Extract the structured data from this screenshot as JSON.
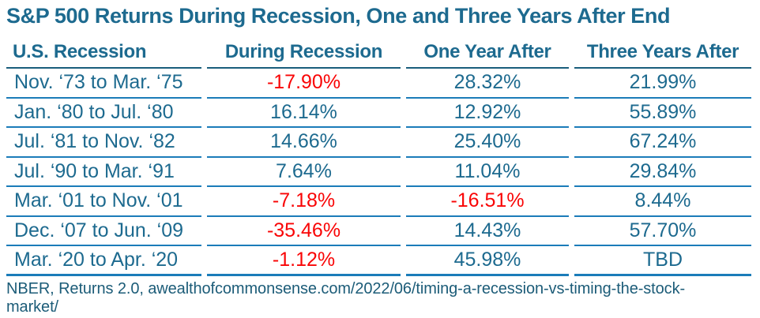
{
  "colors": {
    "teal_text": "#1D6A8F",
    "negative_red": "#F90506",
    "row_separator_blue": "#1B7CB9",
    "header_underline": "#1A5E7C",
    "footer_text": "#1C5C78",
    "background": "#FFFFFF"
  },
  "chart_data": {
    "type": "table",
    "title": "S&P 500 Returns During Recession, One and Three Years After End",
    "columns": [
      "U.S. Recession",
      "During Recession",
      "One Year After",
      "Three Years After"
    ],
    "rows": [
      {
        "period": "Nov. ‘73 to Mar. ‘75",
        "during": "-17.90%",
        "one_year_after": "28.32%",
        "three_years_after": "21.99%"
      },
      {
        "period": "Jan. ‘80 to Jul. ‘80",
        "during": "16.14%",
        "one_year_after": "12.92%",
        "three_years_after": "55.89%"
      },
      {
        "period": "Jul. ‘81 to Nov. ‘82",
        "during": "14.66%",
        "one_year_after": "25.40%",
        "three_years_after": "67.24%"
      },
      {
        "period": "Jul. ‘90 to Mar. ‘91",
        "during": "7.64%",
        "one_year_after": "11.04%",
        "three_years_after": "29.84%"
      },
      {
        "period": "Mar. ‘01 to Nov. ‘01",
        "during": "-7.18%",
        "one_year_after": "-16.51%",
        "three_years_after": "8.44%"
      },
      {
        "period": "Dec. ‘07 to Jun. ‘09",
        "during": "-35.46%",
        "one_year_after": "14.43%",
        "three_years_after": "57.70%"
      },
      {
        "period": "Mar. ‘20 to Apr. ‘20",
        "during": "-1.12%",
        "one_year_after": "45.98%",
        "three_years_after": "TBD"
      }
    ],
    "source_note": "NBER, Returns 2.0, awealthofcommonsense.com/2022/06/timing-a-recession-vs-timing-the-stock-market/"
  }
}
